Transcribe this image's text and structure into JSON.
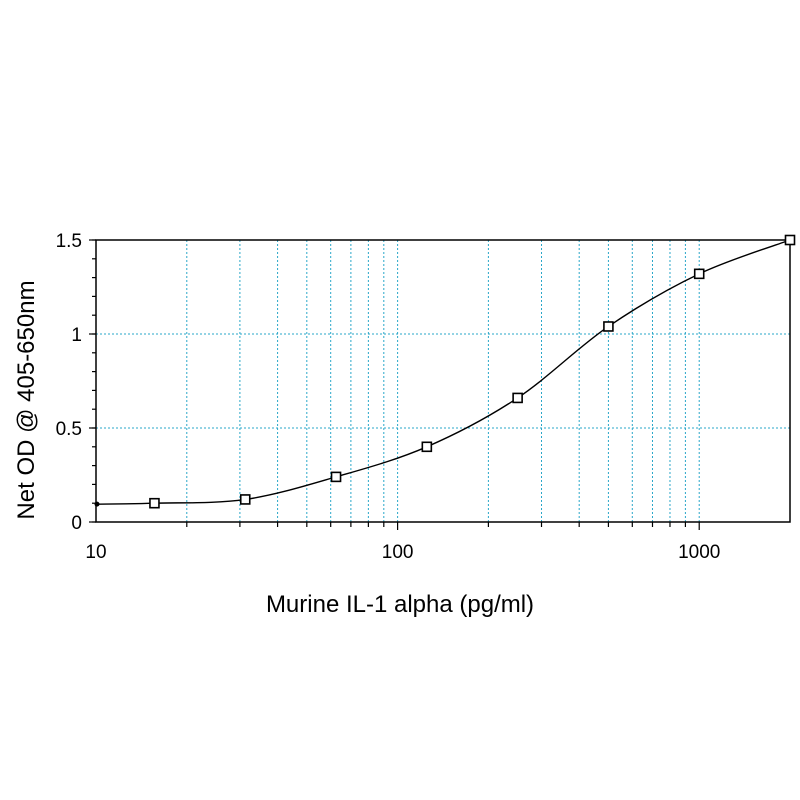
{
  "chart_data": {
    "type": "scatter",
    "title": "",
    "xlabel": "Murine IL-1 alpha (pg/ml)",
    "ylabel": "Net OD @ 405-650nm",
    "x_scale": "log",
    "xlim": [
      10,
      2000
    ],
    "ylim": [
      0,
      1.5
    ],
    "x_tick_labels": [
      "10",
      "100",
      "1000"
    ],
    "y_tick_labels": [
      "0",
      "0.5",
      "1",
      "1.5"
    ],
    "grid": true,
    "grid_color": "#2aa7c9",
    "series": [
      {
        "x": [
          15.625,
          31.25,
          62.5,
          125,
          250,
          500,
          1000,
          2000
        ],
        "y": [
          0.1,
          0.12,
          0.24,
          0.4,
          0.66,
          1.04,
          1.32,
          1.5
        ],
        "marker": "open-square",
        "fit_curve": true
      }
    ]
  }
}
